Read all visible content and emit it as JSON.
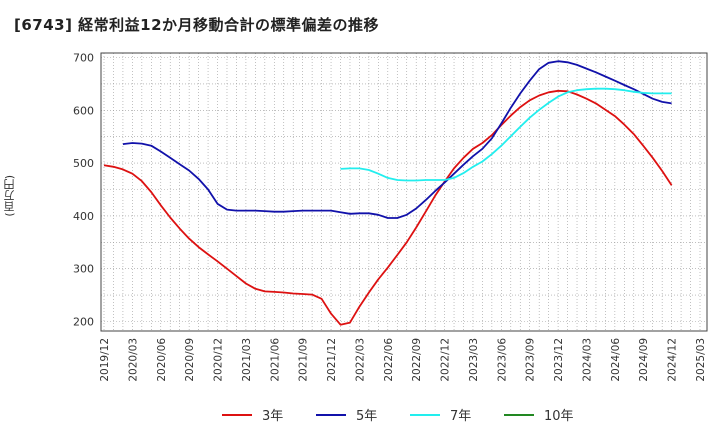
{
  "chart_data": {
    "type": "line",
    "title": "[6743]  経常利益12か月移動合計の標準偏差の推移",
    "ylabel": "(百万円)",
    "xlabel": "",
    "ylim": [
      180,
      710
    ],
    "yticks": [
      200,
      300,
      400,
      500,
      600,
      700
    ],
    "xticks": [
      "2019/12",
      "2020/03",
      "2020/06",
      "2020/09",
      "2020/12",
      "2021/03",
      "2021/06",
      "2021/09",
      "2021/12",
      "2022/03",
      "2022/06",
      "2022/09",
      "2022/12",
      "2023/03",
      "2023/06",
      "2023/09",
      "2023/12",
      "2024/03",
      "2024/06",
      "2024/09",
      "2024/12",
      "2025/03"
    ],
    "grid": true,
    "legend_position": "bottom",
    "series": [
      {
        "name": "3年",
        "color": "#dd1111",
        "x": [
          "2019/12",
          "2020/01",
          "2020/02",
          "2020/03",
          "2020/04",
          "2020/05",
          "2020/06",
          "2020/07",
          "2020/08",
          "2020/09",
          "2020/10",
          "2020/11",
          "2020/12",
          "2021/01",
          "2021/02",
          "2021/03",
          "2021/04",
          "2021/05",
          "2021/06",
          "2021/07",
          "2021/08",
          "2021/09",
          "2021/10",
          "2021/11",
          "2021/12",
          "2022/01",
          "2022/02",
          "2022/03",
          "2022/04",
          "2022/05",
          "2022/06",
          "2022/07",
          "2022/08",
          "2022/09",
          "2022/10",
          "2022/11",
          "2022/12",
          "2023/01",
          "2023/02",
          "2023/03",
          "2023/04",
          "2023/05",
          "2023/06",
          "2023/07",
          "2023/08",
          "2023/09",
          "2023/10",
          "2023/11",
          "2023/12",
          "2024/01",
          "2024/02",
          "2024/03",
          "2024/04",
          "2024/05",
          "2024/06",
          "2024/07",
          "2024/08",
          "2024/09",
          "2024/10",
          "2024/11",
          "2024/12"
        ],
        "values": [
          496,
          493,
          488,
          480,
          466,
          445,
          420,
          397,
          376,
          357,
          341,
          327,
          314,
          300,
          286,
          272,
          262,
          257,
          256,
          255,
          253,
          252,
          251,
          243,
          215,
          194,
          198,
          228,
          255,
          280,
          302,
          326,
          350,
          378,
          408,
          438,
          465,
          490,
          510,
          527,
          538,
          553,
          572,
          590,
          606,
          619,
          628,
          634,
          637,
          636,
          630,
          622,
          613,
          601,
          589,
          573,
          555,
          533,
          510,
          485,
          458
        ]
      },
      {
        "name": "5年",
        "color": "#1111aa",
        "x": [
          "2020/02",
          "2020/03",
          "2020/04",
          "2020/05",
          "2020/06",
          "2020/07",
          "2020/08",
          "2020/09",
          "2020/10",
          "2020/11",
          "2020/12",
          "2021/01",
          "2021/02",
          "2021/03",
          "2021/04",
          "2021/05",
          "2021/06",
          "2021/07",
          "2021/08",
          "2021/09",
          "2021/10",
          "2021/11",
          "2021/12",
          "2022/01",
          "2022/02",
          "2022/03",
          "2022/04",
          "2022/05",
          "2022/06",
          "2022/07",
          "2022/08",
          "2022/09",
          "2022/10",
          "2022/11",
          "2022/12",
          "2023/01",
          "2023/02",
          "2023/03",
          "2023/04",
          "2023/05",
          "2023/06",
          "2023/07",
          "2023/08",
          "2023/09",
          "2023/10",
          "2023/11",
          "2023/12",
          "2024/01",
          "2024/02",
          "2024/03",
          "2024/04",
          "2024/05",
          "2024/06",
          "2024/07",
          "2024/08",
          "2024/09",
          "2024/10",
          "2024/11",
          "2024/12"
        ],
        "values": [
          536,
          538,
          537,
          533,
          522,
          510,
          498,
          486,
          470,
          450,
          423,
          412,
          410,
          410,
          410,
          409,
          408,
          408,
          409,
          410,
          410,
          410,
          410,
          407,
          404,
          405,
          405,
          402,
          396,
          396,
          402,
          414,
          430,
          447,
          463,
          480,
          497,
          513,
          527,
          547,
          575,
          605,
          632,
          656,
          678,
          690,
          693,
          691,
          686,
          679,
          672,
          664,
          656,
          648,
          640,
          631,
          622,
          616,
          613
        ]
      },
      {
        "name": "7年",
        "color": "#22eeee",
        "x": [
          "2022/01",
          "2022/02",
          "2022/03",
          "2022/04",
          "2022/05",
          "2022/06",
          "2022/07",
          "2022/08",
          "2022/09",
          "2022/10",
          "2022/11",
          "2022/12",
          "2023/01",
          "2023/02",
          "2023/03",
          "2023/04",
          "2023/05",
          "2023/06",
          "2023/07",
          "2023/08",
          "2023/09",
          "2023/10",
          "2023/11",
          "2023/12",
          "2024/01",
          "2024/02",
          "2024/03",
          "2024/04",
          "2024/05",
          "2024/06",
          "2024/07",
          "2024/08",
          "2024/09",
          "2024/10",
          "2024/11",
          "2024/12"
        ],
        "values": [
          489,
          490,
          490,
          487,
          480,
          472,
          468,
          467,
          467,
          468,
          468,
          468,
          472,
          481,
          493,
          503,
          517,
          533,
          551,
          569,
          586,
          601,
          614,
          626,
          634,
          638,
          640,
          641,
          641,
          640,
          638,
          635,
          633,
          632,
          632,
          632
        ]
      },
      {
        "name": "10年",
        "color": "#228822",
        "x": [],
        "values": []
      }
    ]
  }
}
